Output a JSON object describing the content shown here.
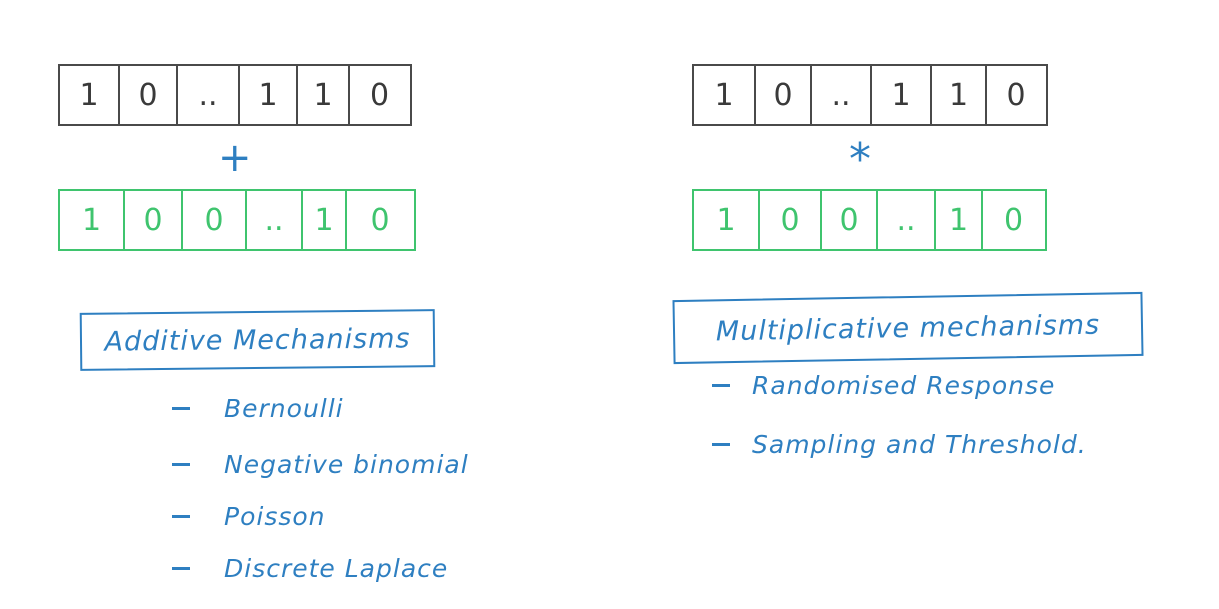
{
  "left": {
    "top_bits": [
      "1",
      "0",
      "..",
      "1",
      "1",
      "0"
    ],
    "operator": "+",
    "bottom_bits": [
      "1",
      "0",
      "0",
      "..",
      "1",
      "0"
    ],
    "heading": "Additive Mechanisms",
    "items": [
      "Bernoulli",
      "Negative binomial",
      "Poisson",
      "Discrete Laplace"
    ]
  },
  "right": {
    "top_bits": [
      "1",
      "0",
      "..",
      "1",
      "1",
      "0"
    ],
    "operator": "*",
    "bottom_bits": [
      "1",
      "0",
      "0",
      "..",
      "1",
      "0"
    ],
    "heading": "Multiplicative mechanisms",
    "items": [
      "Randomised Response",
      "Sampling and Threshold."
    ]
  },
  "colors": {
    "black_row": "#4a4a4a",
    "green_row": "#3fc46e",
    "blue_ink": "#2e7fc1"
  }
}
